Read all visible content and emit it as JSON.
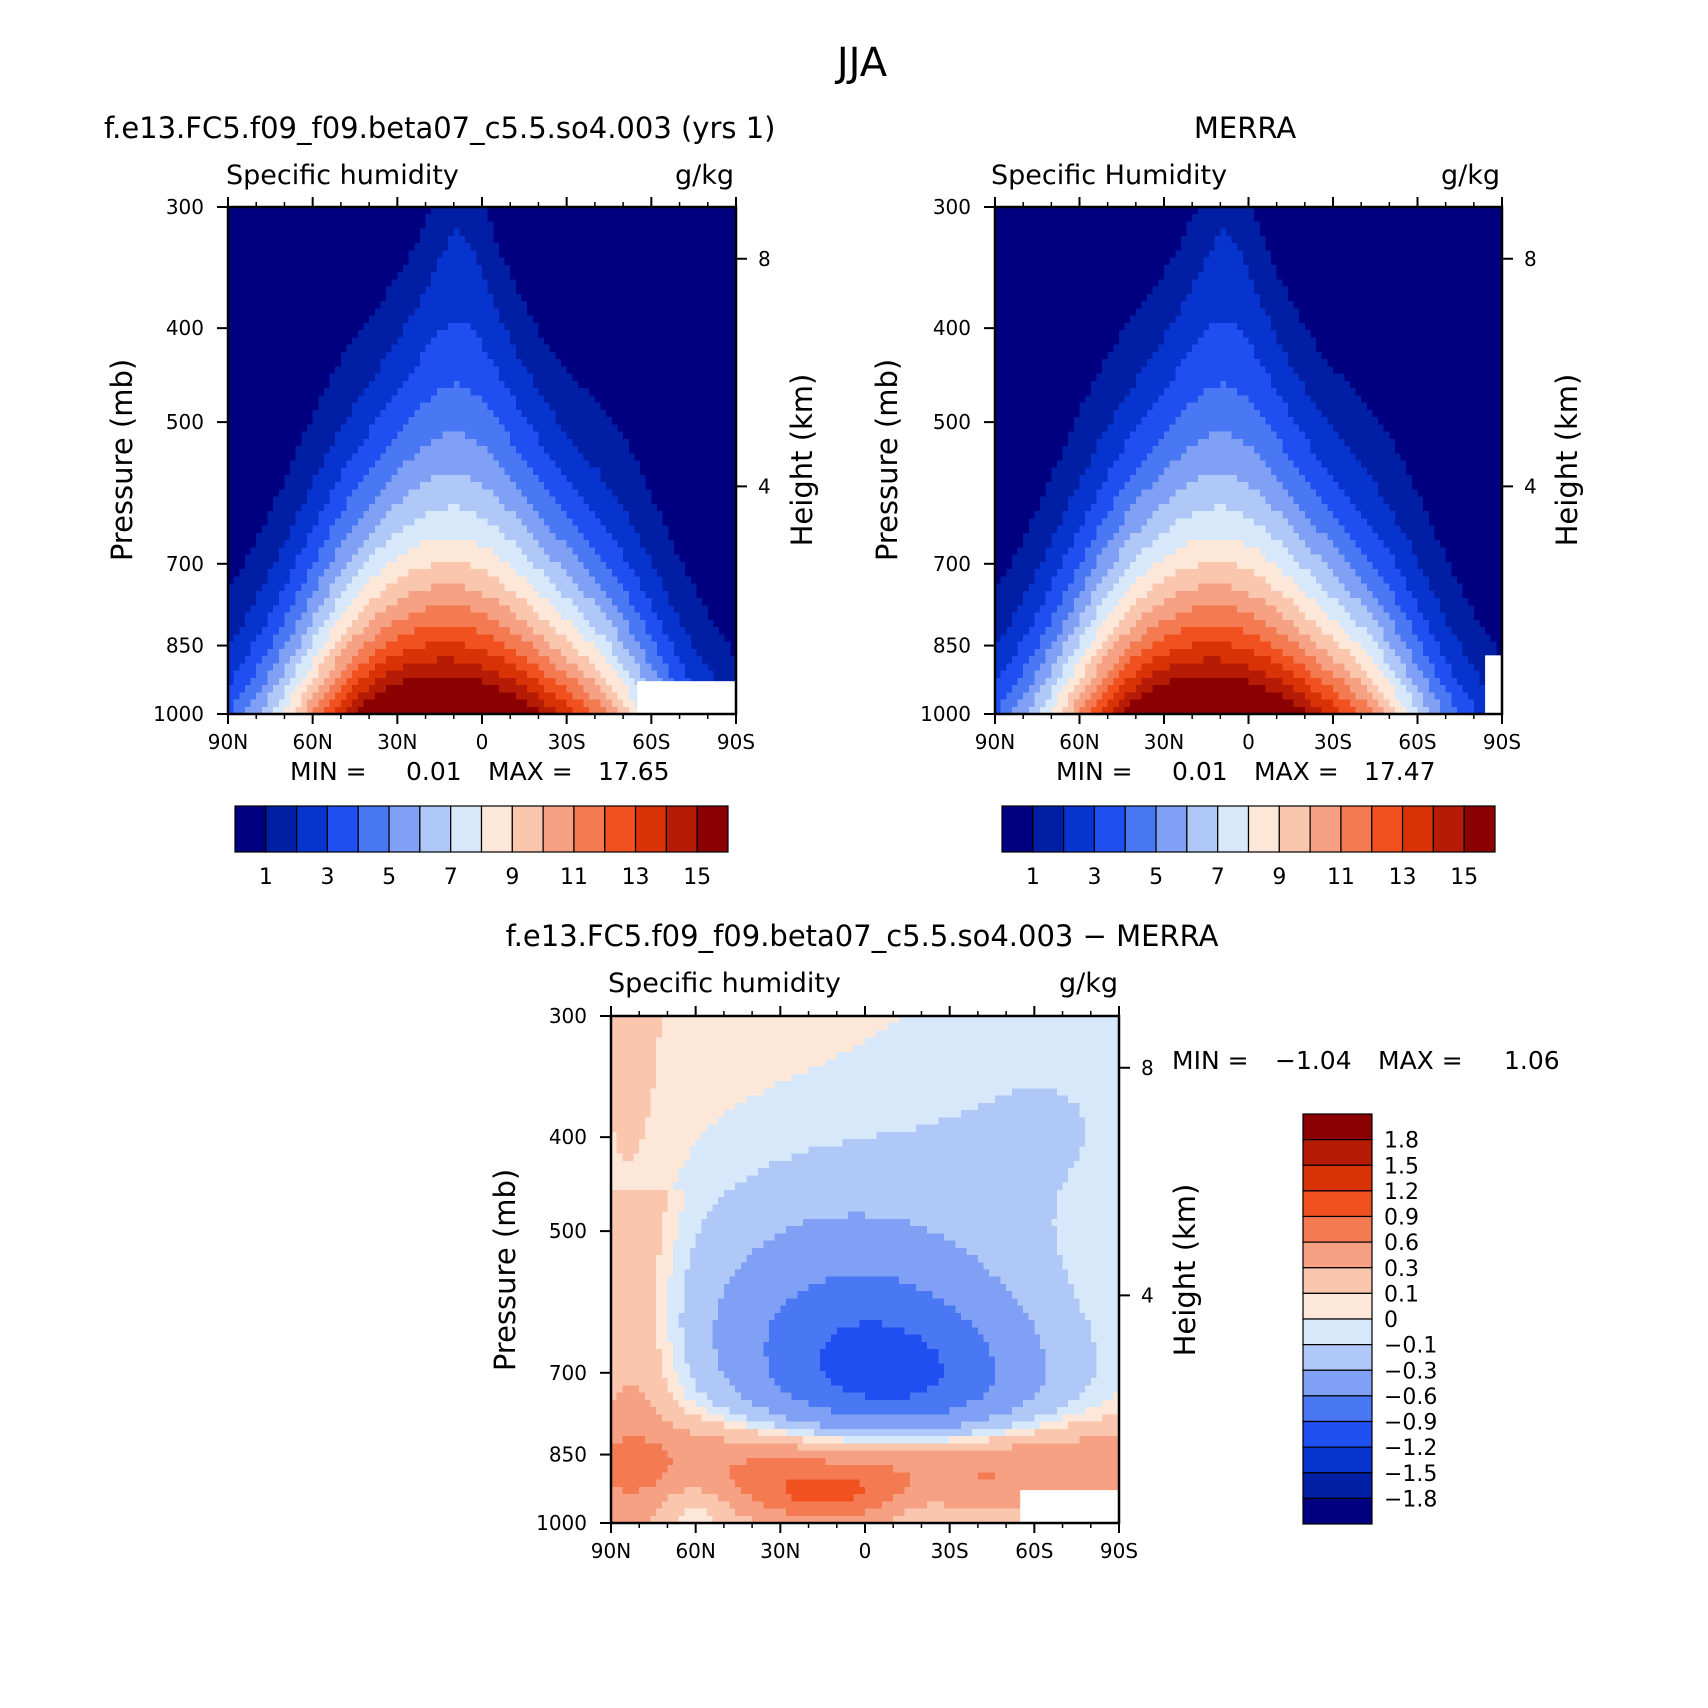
{
  "figure": {
    "title": "JJA"
  },
  "colors": {
    "seq": [
      "#000080",
      "#001fa5",
      "#0733cf",
      "#1f4ff0",
      "#4a78f5",
      "#7fa0f5",
      "#b0c8f8",
      "#d8e8fb",
      "#fde7d8",
      "#fbc6ae",
      "#f6a184",
      "#f47a52",
      "#f1501f",
      "#d93206",
      "#b61c05",
      "#8b0000"
    ],
    "div": [
      "#8b0000",
      "#b61c05",
      "#d93206",
      "#f1501f",
      "#f47a52",
      "#f6a184",
      "#fbc6ae",
      "#fde7d8",
      "#d8e8fb",
      "#b0c8f8",
      "#7fa0f5",
      "#4a78f5",
      "#1f4ff0",
      "#0733cf",
      "#001fa5",
      "#000080"
    ]
  },
  "chart_data": [
    {
      "type": "contour",
      "title": "f.e13.FC5.f09_f09.beta07_c5.5.so4.003 (yrs 1)",
      "left_label": "Specific humidity",
      "right_label": "g/kg",
      "xlabel": "",
      "ylabel": "Pressure (mb)",
      "y2label": "Height (km)",
      "x_ticks": [
        "90N",
        "60N",
        "30N",
        "0",
        "30S",
        "60S",
        "90S"
      ],
      "x_range": [
        90,
        -90
      ],
      "y_ticks": [
        "300",
        "400",
        "500",
        "700",
        "850",
        "1000"
      ],
      "y_range": [
        300,
        1000
      ],
      "y2_ticks": [
        "8",
        "4"
      ],
      "min_label": "MIN =",
      "min_value": "0.01",
      "max_label": "MAX =",
      "max_value": "17.65",
      "levels": [
        1,
        2,
        3,
        4,
        5,
        6,
        7,
        8,
        9,
        10,
        11,
        12,
        13,
        14,
        15
      ],
      "colorbar_labels": [
        "1",
        "3",
        "5",
        "7",
        "9",
        "11",
        "13",
        "15"
      ],
      "peak_lat": 8,
      "peak_top_pressure": 370
    },
    {
      "type": "contour",
      "title": "MERRA",
      "left_label": "Specific Humidity",
      "right_label": "g/kg",
      "xlabel": "",
      "ylabel": "Pressure (mb)",
      "y2label": "Height (km)",
      "x_ticks": [
        "90N",
        "60N",
        "30N",
        "0",
        "30S",
        "60S",
        "90S"
      ],
      "x_range": [
        90,
        -90
      ],
      "y_ticks": [
        "300",
        "400",
        "500",
        "700",
        "850",
        "1000"
      ],
      "y_range": [
        300,
        1000
      ],
      "y2_ticks": [
        "8",
        "4"
      ],
      "min_label": "MIN =",
      "min_value": "0.01",
      "max_label": "MAX =",
      "max_value": "17.47",
      "levels": [
        1,
        2,
        3,
        4,
        5,
        6,
        7,
        8,
        9,
        10,
        11,
        12,
        13,
        14,
        15
      ],
      "colorbar_labels": [
        "1",
        "3",
        "5",
        "7",
        "9",
        "11",
        "13",
        "15"
      ],
      "peak_lat": 8,
      "peak_top_pressure": 365
    },
    {
      "type": "contour",
      "title": "f.e13.FC5.f09_f09.beta07_c5.5.so4.003 − MERRA",
      "left_label": "Specific humidity",
      "right_label": "g/kg",
      "xlabel": "",
      "ylabel": "Pressure (mb)",
      "y2label": "Height (km)",
      "x_ticks": [
        "90N",
        "60N",
        "30N",
        "0",
        "30S",
        "60S",
        "90S"
      ],
      "x_range": [
        90,
        -90
      ],
      "y_ticks": [
        "300",
        "400",
        "500",
        "700",
        "850",
        "1000"
      ],
      "y_range": [
        300,
        1000
      ],
      "y2_ticks": [
        "8",
        "4"
      ],
      "min_label": "MIN =",
      "min_value": "−1.04",
      "max_label": "MAX =",
      "max_value": "1.06",
      "levels": [
        -1.8,
        -1.5,
        -1.2,
        -0.9,
        -0.6,
        -0.3,
        -0.1,
        0,
        0.1,
        0.3,
        0.6,
        0.9,
        1.2,
        1.5,
        1.8
      ],
      "colorbar_labels": [
        "1.8",
        "1.5",
        "1.2",
        "0.9",
        "0.6",
        "0.3",
        "0.1",
        "0",
        "−0.1",
        "−0.3",
        "−0.6",
        "−0.9",
        "−1.2",
        "−1.5",
        "−1.8"
      ]
    }
  ]
}
